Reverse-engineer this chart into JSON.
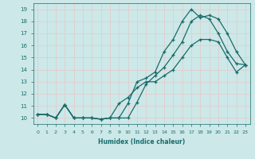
{
  "xlabel": "Humidex (Indice chaleur)",
  "bg_color": "#cce8e8",
  "grid_color": "#d4e8d4",
  "line_color": "#1a6b6b",
  "xlim": [
    -0.5,
    23.5
  ],
  "ylim": [
    9.5,
    19.5
  ],
  "xticks": [
    0,
    1,
    2,
    3,
    4,
    5,
    6,
    7,
    8,
    9,
    10,
    11,
    12,
    13,
    14,
    15,
    16,
    17,
    18,
    19,
    20,
    21,
    22,
    23
  ],
  "yticks": [
    10,
    11,
    12,
    13,
    14,
    15,
    16,
    17,
    18,
    19
  ],
  "line1_x": [
    0,
    1,
    2,
    3,
    4,
    5,
    6,
    7,
    8,
    9,
    10,
    11,
    12,
    13,
    14,
    15,
    16,
    17,
    18,
    19,
    20,
    21,
    22,
    23
  ],
  "line1_y": [
    10.3,
    10.3,
    10.0,
    11.1,
    10.0,
    10.0,
    10.0,
    9.9,
    10.0,
    10.0,
    10.0,
    11.3,
    12.8,
    13.5,
    14.2,
    15.2,
    16.3,
    18.0,
    18.5,
    18.2,
    17.0,
    15.5,
    14.5,
    14.4
  ],
  "line2_x": [
    0,
    1,
    2,
    3,
    4,
    5,
    6,
    7,
    8,
    9,
    10,
    11,
    12,
    13,
    14,
    15,
    16,
    17,
    18,
    19,
    20,
    21,
    22,
    23
  ],
  "line2_y": [
    10.3,
    10.3,
    10.0,
    11.1,
    10.0,
    10.0,
    10.0,
    9.9,
    10.0,
    10.0,
    11.2,
    13.0,
    13.3,
    13.8,
    15.5,
    16.5,
    18.0,
    19.0,
    18.3,
    18.5,
    18.2,
    17.0,
    15.5,
    14.4
  ],
  "line3_x": [
    0,
    1,
    2,
    3,
    4,
    5,
    6,
    7,
    8,
    9,
    10,
    11,
    12,
    13,
    14,
    15,
    16,
    17,
    18,
    19,
    20,
    21,
    22,
    23
  ],
  "line3_y": [
    10.3,
    10.3,
    10.0,
    11.1,
    10.0,
    10.0,
    10.0,
    9.9,
    10.0,
    11.2,
    11.7,
    12.5,
    13.0,
    13.0,
    13.5,
    14.0,
    15.0,
    16.0,
    16.5,
    16.5,
    16.3,
    15.0,
    13.8,
    14.4
  ]
}
